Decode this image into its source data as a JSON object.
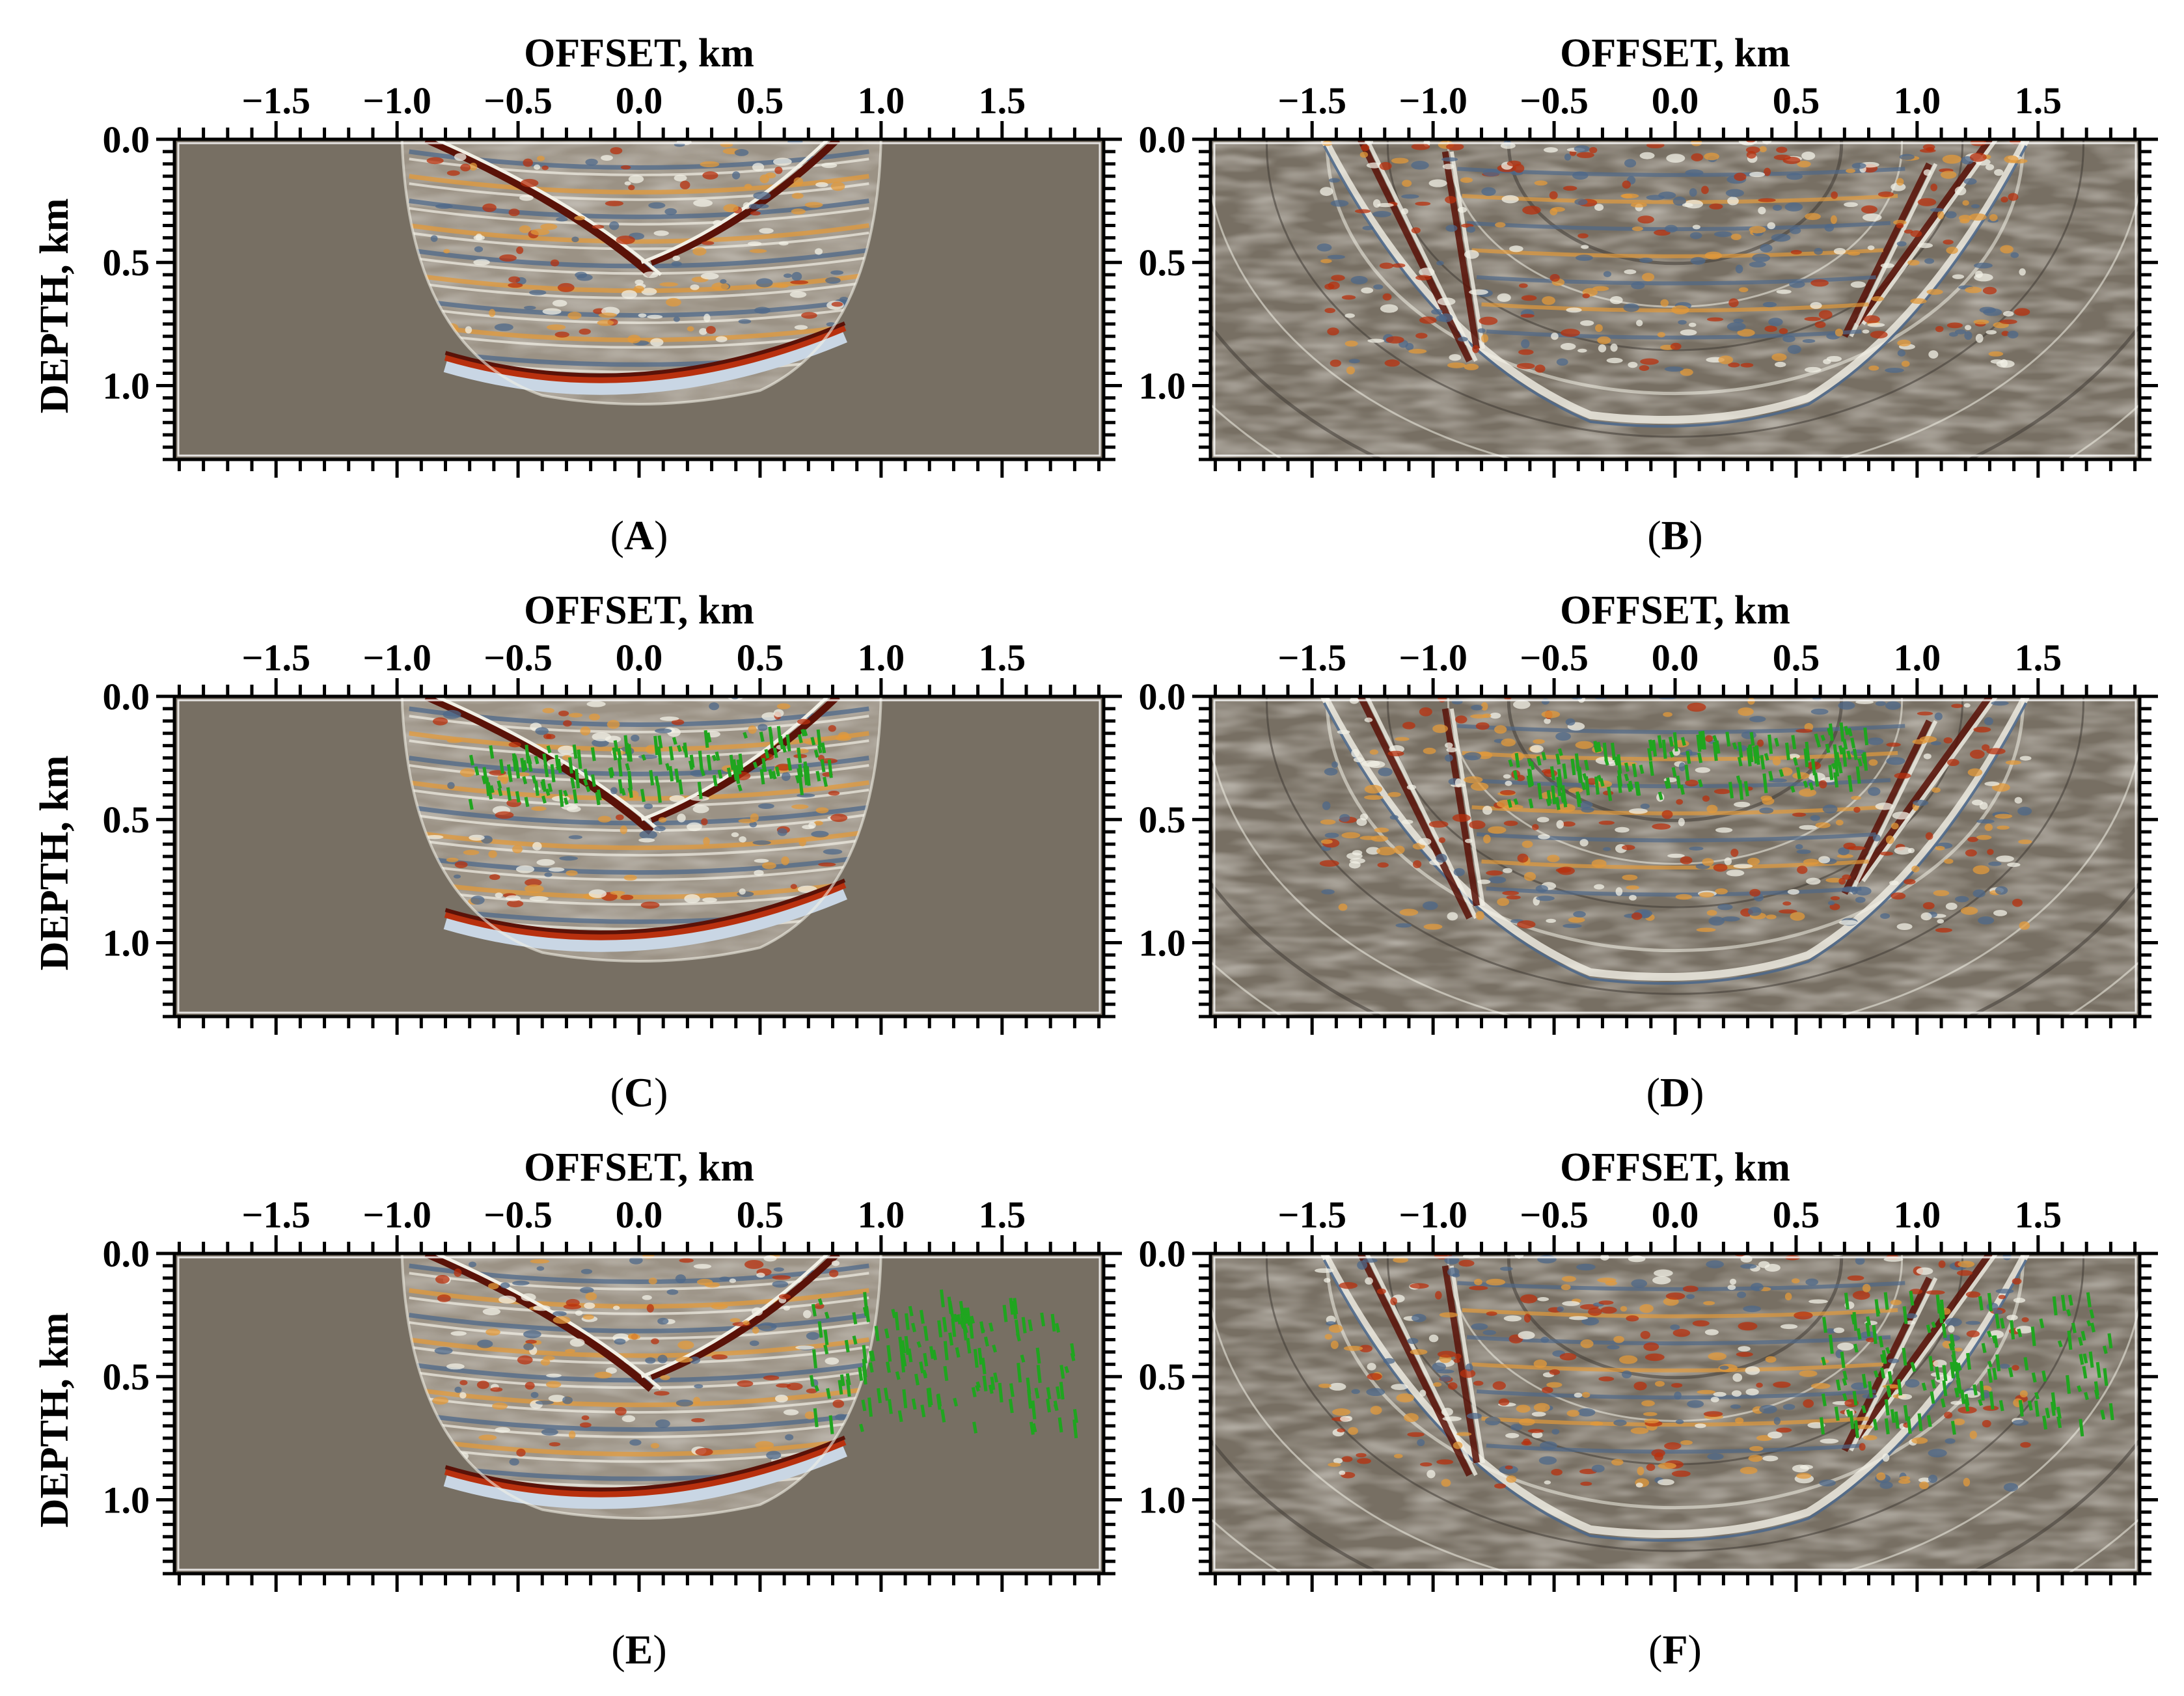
{
  "figure": {
    "panels": [
      {
        "id": "A",
        "label_open": "(",
        "label_letter": "A",
        "label_close": ")",
        "x_title": "OFFSET, km",
        "y_title": "DEPTH, km",
        "markers": "none",
        "image": "narrow"
      },
      {
        "id": "B",
        "label_open": "(",
        "label_letter": "B",
        "label_close": ")",
        "x_title": "OFFSET, km",
        "y_title": "",
        "markers": "none",
        "image": "wide"
      },
      {
        "id": "C",
        "label_open": "(",
        "label_letter": "C",
        "label_close": ")",
        "x_title": "OFFSET, km",
        "y_title": "DEPTH, km",
        "markers": "band",
        "image": "narrow"
      },
      {
        "id": "D",
        "label_open": "(",
        "label_letter": "D",
        "label_close": ")",
        "x_title": "OFFSET, km",
        "y_title": "",
        "markers": "band",
        "image": "wide"
      },
      {
        "id": "E",
        "label_open": "(",
        "label_letter": "E",
        "label_close": ")",
        "x_title": "OFFSET, km",
        "y_title": "DEPTH, km",
        "markers": "right",
        "image": "narrow"
      },
      {
        "id": "F",
        "label_open": "(",
        "label_letter": "F",
        "label_close": ")",
        "x_title": "OFFSET, km",
        "y_title": "",
        "markers": "right",
        "image": "wide"
      }
    ],
    "x_ticks": [
      {
        "value": -1.5,
        "label": "−1.5"
      },
      {
        "value": -1.0,
        "label": "−1.0"
      },
      {
        "value": -0.5,
        "label": "−0.5"
      },
      {
        "value": 0.0,
        "label": "0.0"
      },
      {
        "value": 0.5,
        "label": "0.5"
      },
      {
        "value": 1.0,
        "label": "1.0"
      },
      {
        "value": 1.5,
        "label": "1.5"
      }
    ],
    "y_ticks": [
      {
        "value": 0.0,
        "label": "0.0"
      },
      {
        "value": 0.5,
        "label": "0.5"
      },
      {
        "value": 1.0,
        "label": "1.0"
      }
    ],
    "x_range": [
      -1.92,
      1.92
    ],
    "y_range": [
      0.0,
      1.3
    ],
    "colors": {
      "background": "#776f63",
      "red": "#b8300e",
      "dark_red": "#5a1208",
      "orange": "#e39a3a",
      "light": "#f2f0e6",
      "blue": "#4e6889",
      "light_blue": "#c9d6e4",
      "marker": "#1fa51f",
      "frame": "#000000"
    }
  }
}
